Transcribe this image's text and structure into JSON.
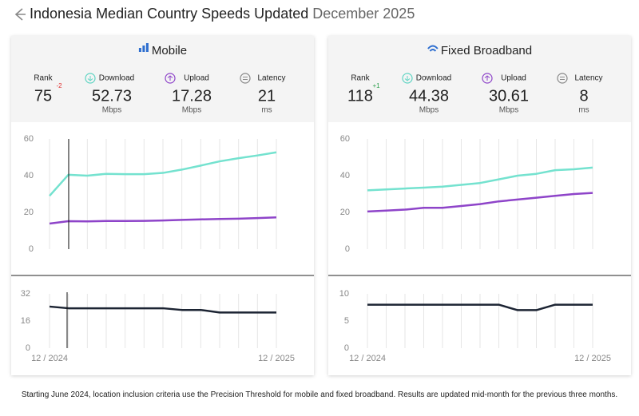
{
  "header": {
    "title": "Indonesia Median Country Speeds Updated",
    "date": "December 2025"
  },
  "panels": [
    {
      "title": "Mobile",
      "rank_label": "Rank",
      "rank": 75,
      "rank_change": "-2",
      "stats": [
        {
          "label": "Download",
          "value": 52.73,
          "unit": "Mbps"
        },
        {
          "label": "Upload",
          "value": 17.28,
          "unit": "Mbps"
        },
        {
          "label": "Latency",
          "value": 21,
          "unit": "ms"
        }
      ]
    },
    {
      "title": "Fixed Broadband",
      "rank_label": "Rank",
      "rank": 118,
      "rank_change": "+1",
      "stats": [
        {
          "label": "Download",
          "value": 44.38,
          "unit": "Mbps"
        },
        {
          "label": "Upload",
          "value": 30.61,
          "unit": "Mbps"
        },
        {
          "label": "Latency",
          "value": 8,
          "unit": "ms"
        }
      ]
    }
  ],
  "chart_data": [
    {
      "type": "line",
      "ylim": [
        0,
        60
      ],
      "yticks": [
        0,
        20,
        40,
        60
      ],
      "series": [
        {
          "color": "#74e2cf",
          "values": [
            29.0,
            40.5,
            40.0,
            41.0,
            40.8,
            40.8,
            41.5,
            43.3,
            45.5,
            47.8,
            49.5,
            51.0,
            52.73
          ]
        },
        {
          "color": "#8e44c9",
          "values": [
            13.9,
            15.2,
            15.1,
            15.3,
            15.3,
            15.4,
            15.6,
            15.9,
            16.2,
            16.4,
            16.6,
            16.9,
            17.28
          ]
        }
      ]
    },
    {
      "type": "line",
      "ylim": [
        0,
        32
      ],
      "yticks": [
        0,
        16,
        32
      ],
      "categories": [
        "12 / 2024",
        null,
        null,
        null,
        null,
        null,
        null,
        null,
        null,
        null,
        null,
        null,
        "12 / 2025"
      ],
      "series": [
        {
          "color": "#1c2433",
          "values": [
            24.5,
            23.5,
            23.5,
            23.5,
            23.5,
            23.5,
            23.5,
            22.5,
            22.5,
            21,
            21,
            21,
            21
          ]
        }
      ]
    },
    {
      "type": "line",
      "ylim": [
        0,
        60
      ],
      "yticks": [
        0,
        20,
        40,
        60
      ],
      "series": [
        {
          "color": "#74e2cf",
          "values": [
            32,
            32.5,
            33,
            33.5,
            34,
            35,
            36,
            38,
            40,
            41,
            43,
            43.5,
            44.38
          ]
        },
        {
          "color": "#8e44c9",
          "values": [
            20.5,
            21,
            21.5,
            22.5,
            22.5,
            23.5,
            24.5,
            26,
            27,
            28,
            29,
            30,
            30.61
          ]
        }
      ]
    },
    {
      "type": "line",
      "ylim": [
        0,
        10
      ],
      "yticks": [
        0,
        5,
        10
      ],
      "categories": [
        "12 / 2024",
        null,
        null,
        null,
        null,
        null,
        null,
        null,
        null,
        null,
        null,
        null,
        "12 / 2025"
      ],
      "series": [
        {
          "color": "#1c2433",
          "values": [
            8,
            8,
            8,
            8,
            8,
            8,
            8,
            8,
            7,
            7,
            8,
            8,
            8
          ]
        }
      ]
    }
  ],
  "footnote": "Starting June 2024, location inclusion criteria use the Precision Threshold for mobile and fixed broadband. Results are updated mid-month for the previous three months."
}
